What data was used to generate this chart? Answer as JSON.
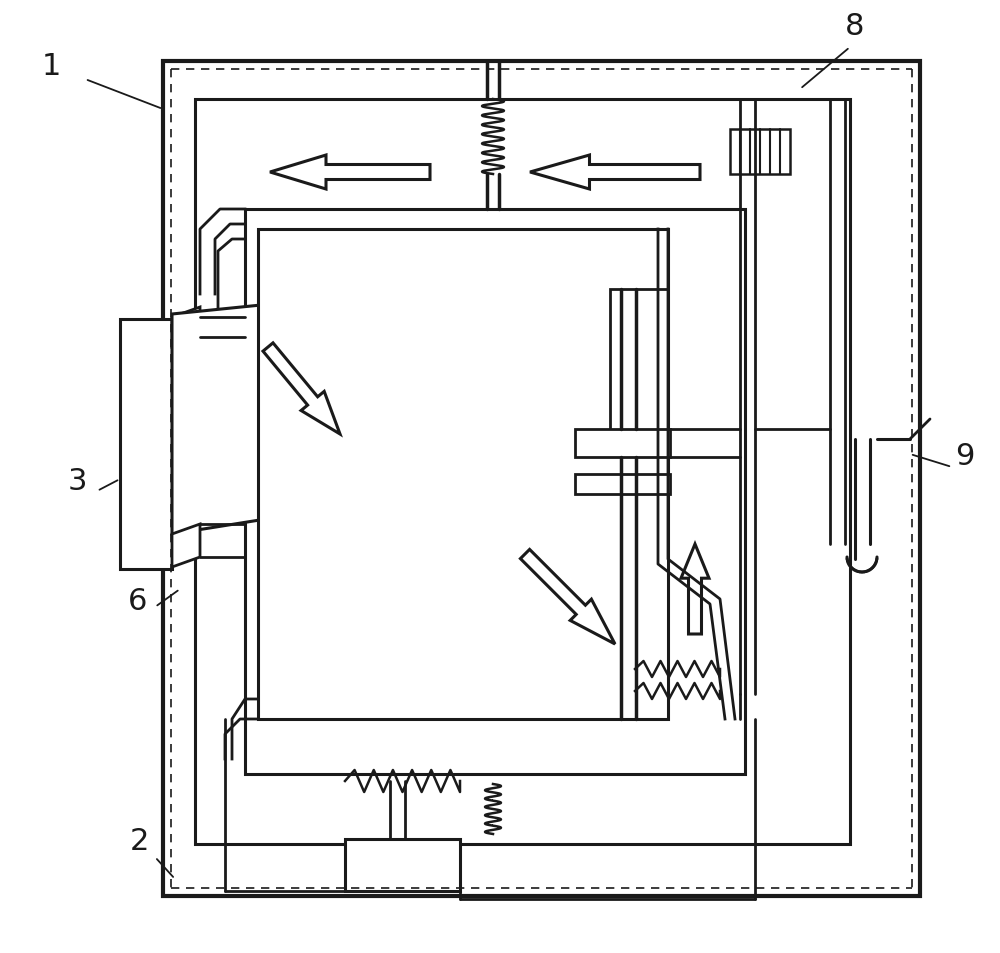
{
  "bg_color": "#ffffff",
  "lc": "#1a1a1a",
  "figsize": [
    10.0,
    9.54
  ],
  "dpi": 100
}
